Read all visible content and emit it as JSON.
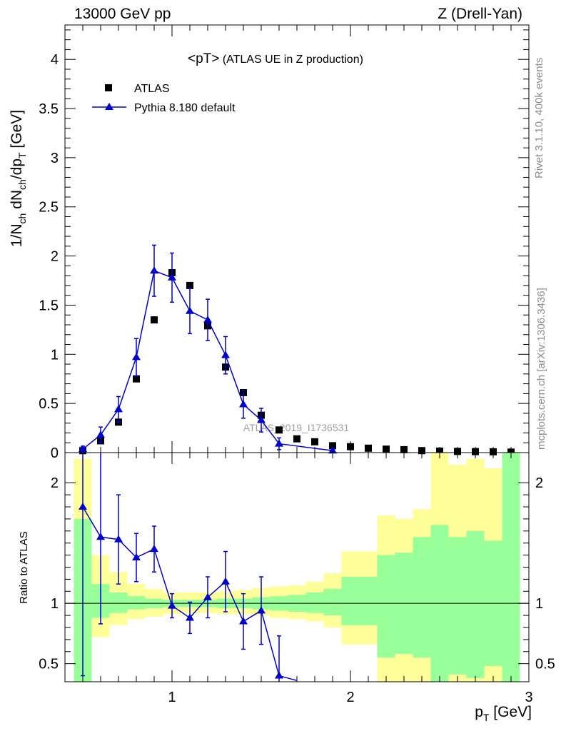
{
  "header": {
    "left": "13000 GeV pp",
    "right": "Z (Drell-Yan)"
  },
  "side_labels": {
    "rivet": "Rivet 3.1.10,  400k events",
    "mcplots": "mcplots.cern.ch [arXiv:1306.3436]"
  },
  "chart_data": [
    {
      "type": "scatter",
      "panel": "main",
      "title_main": "<pT>",
      "title_sub": " (ATLAS UE in Z production)",
      "xlabel": "p_T [GeV]",
      "ylabel": "1/N_ch dN_ch/dp_T [GeV]",
      "xlim": [
        0.4,
        3.0
      ],
      "ylim": [
        0,
        4.35
      ],
      "yticks": [
        0,
        0.5,
        1,
        1.5,
        2,
        2.5,
        3,
        3.5,
        4
      ],
      "ytick_labels": [
        "0",
        "0.5",
        "1",
        "1.5",
        "2",
        "2.5",
        "3",
        "3.5",
        "4"
      ],
      "watermark": "ATLAS_2019_I1736531",
      "legend_position": "top-left",
      "series": [
        {
          "name": "ATLAS",
          "marker": "square",
          "color": "#000000",
          "x": [
            0.5,
            0.6,
            0.7,
            0.8,
            0.9,
            1.0,
            1.1,
            1.2,
            1.3,
            1.4,
            1.5,
            1.6,
            1.7,
            1.8,
            1.9,
            2.0,
            2.1,
            2.2,
            2.3,
            2.4,
            2.5,
            2.6,
            2.7,
            2.8,
            2.9
          ],
          "y": [
            0.02,
            0.12,
            0.31,
            0.75,
            1.35,
            1.83,
            1.7,
            1.29,
            0.87,
            0.61,
            0.38,
            0.23,
            0.14,
            0.11,
            0.07,
            0.06,
            0.045,
            0.035,
            0.03,
            0.02,
            0.015,
            0.012,
            0.01,
            0.008,
            0.005
          ]
        },
        {
          "name": "Pythia 8.180 default",
          "marker": "triangle",
          "color": "#0000cc",
          "x": [
            0.5,
            0.6,
            0.7,
            0.8,
            0.9,
            1.0,
            1.1,
            1.2,
            1.3,
            1.4,
            1.5,
            1.6,
            1.9
          ],
          "y": [
            0.035,
            0.18,
            0.44,
            0.97,
            1.85,
            1.78,
            1.44,
            1.35,
            0.99,
            0.49,
            0.33,
            0.09,
            0.02
          ],
          "yerr": [
            0.03,
            0.08,
            0.13,
            0.19,
            0.26,
            0.25,
            0.23,
            0.21,
            0.19,
            0.14,
            0.12,
            0.06,
            0.02
          ]
        }
      ]
    },
    {
      "type": "line",
      "panel": "ratio",
      "ylabel": "Ratio to ATLAS",
      "xlim": [
        0.4,
        3.0
      ],
      "ylim": [
        0.35,
        2.25
      ],
      "yticks": [
        0.5,
        1,
        2
      ],
      "ytick_labels": [
        "0.5",
        "1",
        "2"
      ],
      "xticks": [
        1,
        2,
        3
      ],
      "xtick_labels": [
        "1",
        "2",
        "3"
      ],
      "bands": {
        "bin_edges": [
          0.45,
          0.55,
          0.65,
          0.75,
          0.85,
          0.95,
          1.05,
          1.15,
          1.25,
          1.35,
          1.45,
          1.55,
          1.65,
          1.75,
          1.85,
          1.95,
          2.15,
          2.25,
          2.35,
          2.45,
          2.55,
          2.65,
          2.75,
          2.85,
          2.95
        ],
        "yellow_color": "#ffff99",
        "green_color": "#99ff99",
        "yellow_lo": [
          0.35,
          0.72,
          0.82,
          0.87,
          0.89,
          0.91,
          0.92,
          0.92,
          0.91,
          0.91,
          0.9,
          0.88,
          0.87,
          0.85,
          0.8,
          0.66,
          0.35,
          0.35,
          0.35,
          0.35,
          0.35,
          0.35,
          0.35,
          0.35
        ],
        "yellow_hi": [
          2.2,
          1.4,
          1.26,
          1.16,
          1.12,
          1.09,
          1.09,
          1.09,
          1.1,
          1.11,
          1.13,
          1.14,
          1.15,
          1.18,
          1.25,
          1.43,
          1.73,
          1.7,
          1.78,
          2.3,
          2.15,
          2.2,
          2.12,
          2.3
        ],
        "green_lo": [
          0.35,
          0.88,
          0.92,
          0.95,
          0.96,
          0.97,
          0.97,
          0.97,
          0.96,
          0.96,
          0.95,
          0.94,
          0.93,
          0.92,
          0.9,
          0.82,
          0.55,
          0.58,
          0.55,
          0.35,
          0.41,
          0.38,
          0.48,
          0.35
        ],
        "green_hi": [
          1.7,
          1.16,
          1.09,
          1.06,
          1.04,
          1.03,
          1.03,
          1.03,
          1.04,
          1.04,
          1.05,
          1.06,
          1.07,
          1.09,
          1.12,
          1.22,
          1.4,
          1.42,
          1.55,
          1.65,
          1.55,
          1.6,
          1.52,
          2.3
        ]
      },
      "series": [
        {
          "name": "Pythia 8.180 default / ATLAS",
          "marker": "triangle",
          "color": "#0000cc",
          "x": [
            0.5,
            0.6,
            0.7,
            0.8,
            0.9,
            1.0,
            1.1,
            1.2,
            1.3,
            1.4,
            1.5,
            1.6,
            1.7
          ],
          "y": [
            1.8,
            1.55,
            1.53,
            1.38,
            1.45,
            0.98,
            0.88,
            1.05,
            1.18,
            0.85,
            0.94,
            0.4,
            0.36
          ],
          "yerr": [
            1.4,
            0.72,
            0.37,
            0.2,
            0.19,
            0.1,
            0.13,
            0.17,
            0.25,
            0.23,
            0.28,
            0.33,
            0.0
          ]
        }
      ]
    }
  ]
}
